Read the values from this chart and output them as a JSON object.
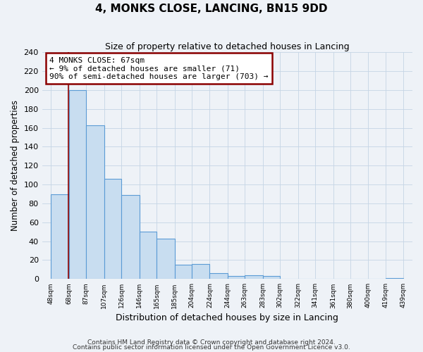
{
  "title": "4, MONKS CLOSE, LANCING, BN15 9DD",
  "subtitle": "Size of property relative to detached houses in Lancing",
  "xlabel": "Distribution of detached houses by size in Lancing",
  "ylabel": "Number of detached properties",
  "bar_left_edges": [
    48,
    68,
    87,
    107,
    126,
    146,
    165,
    185,
    204,
    224,
    244,
    263,
    283,
    302,
    322,
    341,
    361,
    380,
    400,
    419
  ],
  "bar_widths": [
    20,
    19,
    20,
    19,
    20,
    19,
    20,
    19,
    20,
    20,
    19,
    20,
    19,
    20,
    19,
    20,
    19,
    20,
    19,
    20
  ],
  "bar_heights": [
    90,
    200,
    163,
    106,
    89,
    50,
    43,
    15,
    16,
    6,
    3,
    4,
    3,
    0,
    0,
    0,
    0,
    0,
    0,
    1
  ],
  "bar_color": "#c8ddf0",
  "bar_edge_color": "#5b9bd5",
  "tick_labels": [
    "48sqm",
    "68sqm",
    "87sqm",
    "107sqm",
    "126sqm",
    "146sqm",
    "165sqm",
    "185sqm",
    "204sqm",
    "224sqm",
    "244sqm",
    "263sqm",
    "283sqm",
    "302sqm",
    "322sqm",
    "341sqm",
    "361sqm",
    "380sqm",
    "400sqm",
    "419sqm",
    "439sqm"
  ],
  "ylim": [
    0,
    240
  ],
  "yticks": [
    0,
    20,
    40,
    60,
    80,
    100,
    120,
    140,
    160,
    180,
    200,
    220,
    240
  ],
  "red_line_x": 67,
  "ann_line1": "4 MONKS CLOSE: 67sqm",
  "ann_line2": "← 9% of detached houses are smaller (71)",
  "ann_line3": "90% of semi-detached houses are larger (703) →",
  "footnote1": "Contains HM Land Registry data © Crown copyright and database right 2024.",
  "footnote2": "Contains public sector information licensed under the Open Government Licence v3.0.",
  "background_color": "#eef2f7",
  "grid_color": "#c5d5e5"
}
